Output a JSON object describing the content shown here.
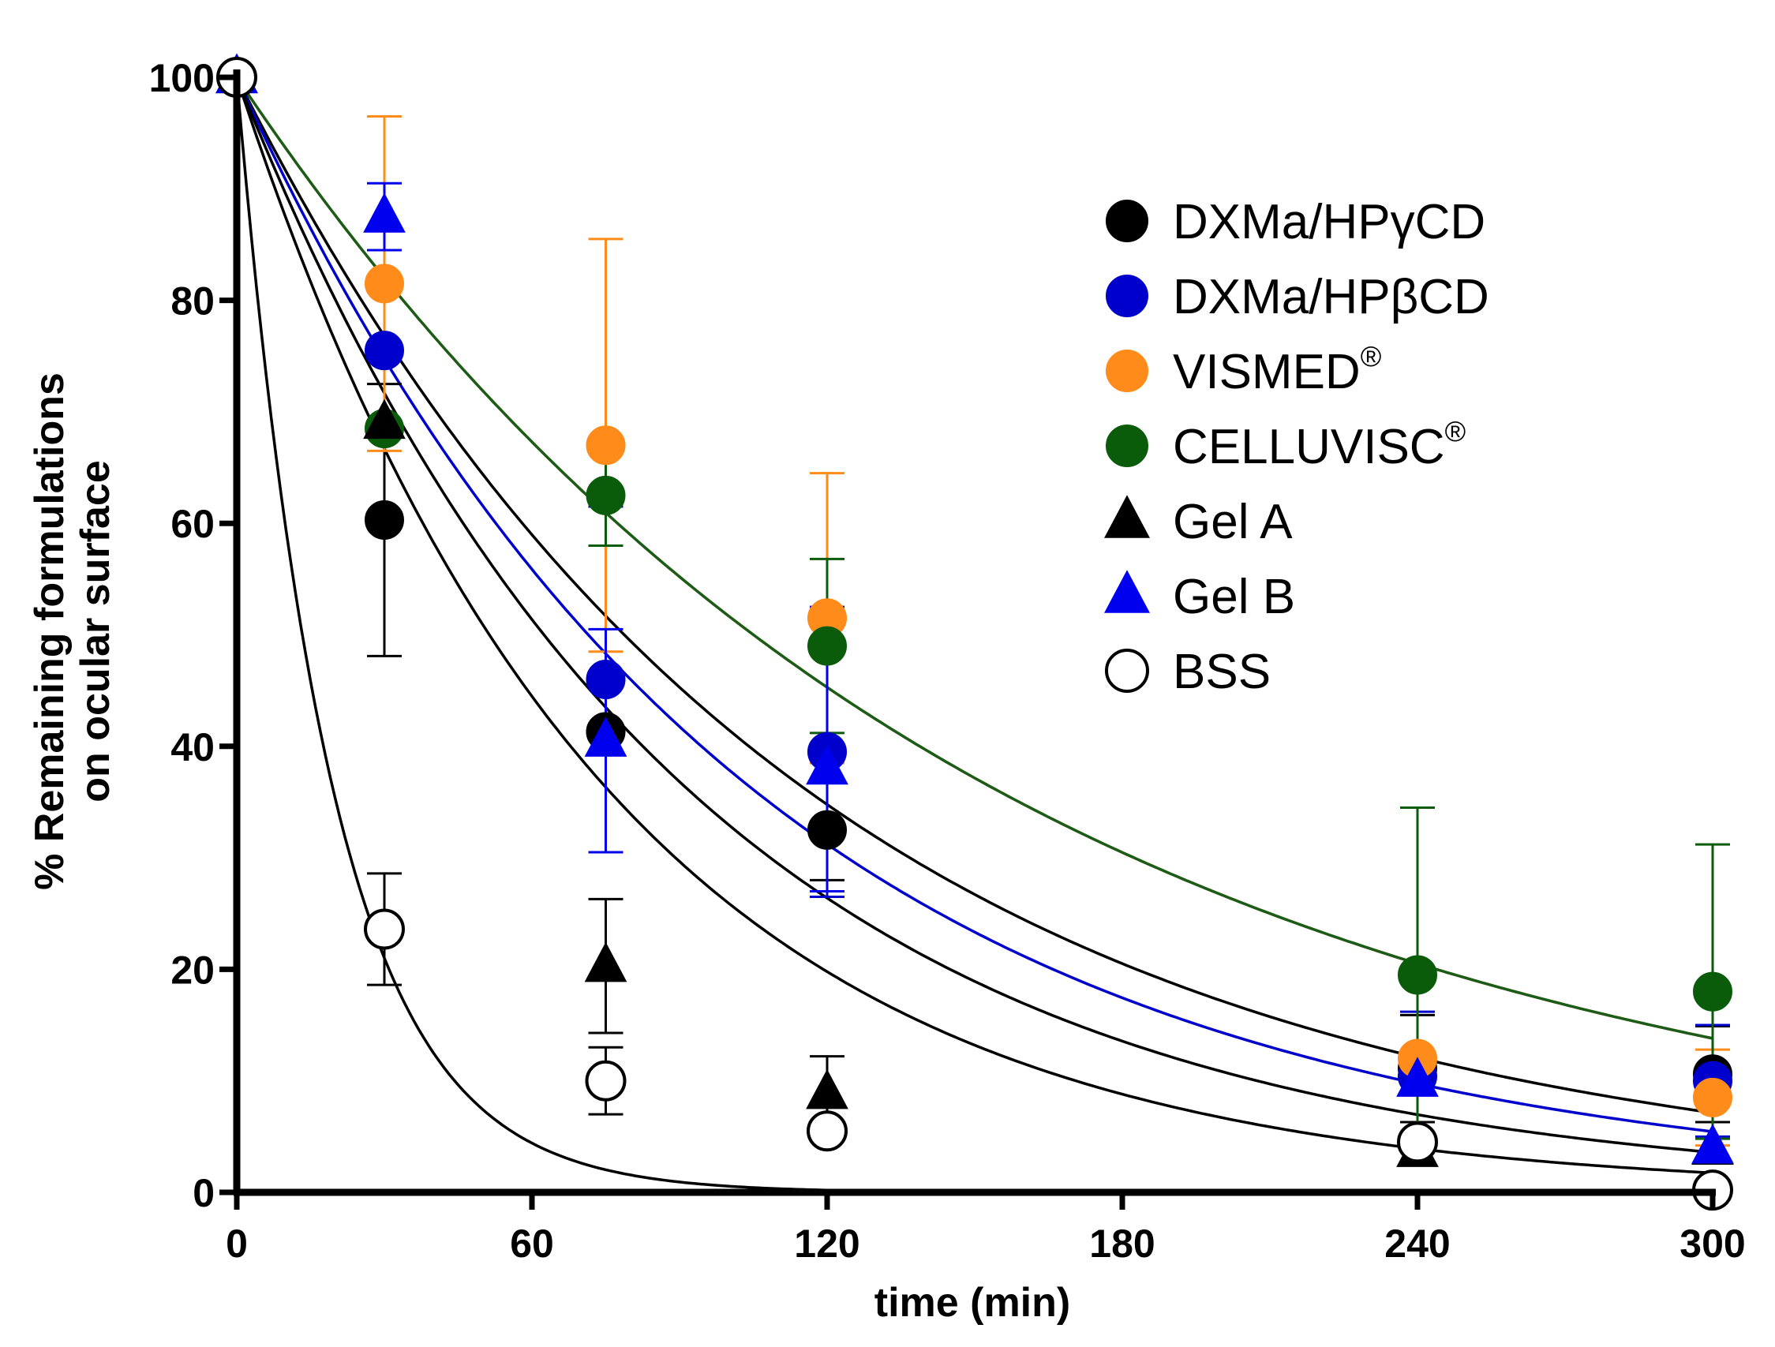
{
  "chart_data": {
    "type": "scatter",
    "title": "",
    "xlabel": "time (min)",
    "ylabel_line1": "% Remaining formulations",
    "ylabel_line2": "on ocular surface",
    "xlim": [
      0,
      300
    ],
    "ylim": [
      0,
      100
    ],
    "xticks": [
      0,
      60,
      120,
      180,
      240,
      300
    ],
    "yticks": [
      0,
      20,
      40,
      60,
      80,
      100
    ],
    "xtick_labels": [
      "0",
      "60",
      "120",
      "180",
      "240",
      "300"
    ],
    "ytick_labels": [
      "0",
      "20",
      "40",
      "60",
      "80",
      "100"
    ],
    "legend_position": "top-right",
    "series": [
      {
        "name": "DXMa/HPγCD",
        "label_main": "DXMa/HPγCD",
        "label_sup": "",
        "marker": "circle",
        "fill": "#000000",
        "stroke": "#000000",
        "curve_color": "#000000",
        "k": 0.0088,
        "x": [
          0,
          30,
          75,
          120,
          240,
          300
        ],
        "y": [
          100,
          60.3,
          41.3,
          32.5,
          11.1,
          10.6
        ],
        "err": [
          0,
          12.2,
          0,
          4.5,
          4.8,
          4.3
        ]
      },
      {
        "name": "DXMa/HPβCD",
        "label_main": "DXMa/HPβCD",
        "label_sup": "",
        "marker": "circle",
        "fill": "#0000cc",
        "stroke": "#0000cc",
        "curve_color": "#0000cc",
        "k": 0.0097,
        "x": [
          0,
          30,
          75,
          120,
          240,
          300
        ],
        "y": [
          100,
          75.5,
          46.0,
          39.5,
          10.4,
          10.0
        ],
        "err": [
          0,
          0,
          15.5,
          13.0,
          5.8,
          5.0
        ]
      },
      {
        "name": "VISMED®",
        "label_main": "VISMED",
        "label_sup": "®",
        "marker": "circle",
        "fill": "#ff8c1a",
        "stroke": "#ff8c1a",
        "curve_color": "#ff8c1a",
        "k": 0.0066,
        "x": [
          0,
          30,
          75,
          120,
          240,
          300
        ],
        "y": [
          100,
          81.5,
          67.0,
          51.5,
          12.0,
          8.5
        ],
        "err": [
          0,
          15.0,
          18.5,
          13.0,
          0,
          4.3
        ]
      },
      {
        "name": "CELLUVISC®",
        "label_main": "CELLUVISC",
        "label_sup": "®",
        "marker": "circle",
        "fill": "#0a5c0a",
        "stroke": "#0a5c0a",
        "curve_color": "#1a5c1a",
        "k": 0.0066,
        "x": [
          0,
          30,
          75,
          120,
          240,
          300
        ],
        "y": [
          100,
          68.5,
          62.5,
          49.0,
          19.5,
          18.0
        ],
        "err": [
          0,
          0,
          4.5,
          7.8,
          15.0,
          13.2
        ]
      },
      {
        "name": "Gel A",
        "label_main": "Gel A",
        "label_sup": "",
        "marker": "triangle",
        "fill": "#000000",
        "stroke": "#000000",
        "curve_color": "#000000",
        "k": 0.0111,
        "x": [
          0,
          30,
          75,
          120,
          240,
          300
        ],
        "y": [
          100,
          69.0,
          20.3,
          8.9,
          3.7,
          3.9
        ],
        "err": [
          0,
          0,
          6.0,
          3.3,
          0,
          0
        ]
      },
      {
        "name": "Gel B",
        "label_main": "Gel B",
        "label_sup": "",
        "marker": "triangle",
        "fill": "#0000ee",
        "stroke": "#0000ee",
        "curve_color": "#000000",
        "k": 0.0135,
        "x": [
          0,
          30,
          75,
          120,
          240,
          300
        ],
        "y": [
          100,
          87.5,
          40.5,
          38.0,
          10.0,
          4.0
        ],
        "err": [
          0,
          3.0,
          10.0,
          11.0,
          0,
          0
        ]
      },
      {
        "name": "BSS",
        "label_main": "BSS",
        "label_sup": "",
        "marker": "circle-open",
        "fill": "#ffffff",
        "stroke": "#000000",
        "curve_color": "#000000",
        "k": 0.052,
        "x": [
          0,
          30,
          75,
          120,
          240,
          300
        ],
        "y": [
          100,
          23.6,
          10.0,
          5.5,
          4.5,
          0.2
        ],
        "err": [
          0,
          5.0,
          3.0,
          0,
          0,
          0
        ]
      }
    ]
  }
}
